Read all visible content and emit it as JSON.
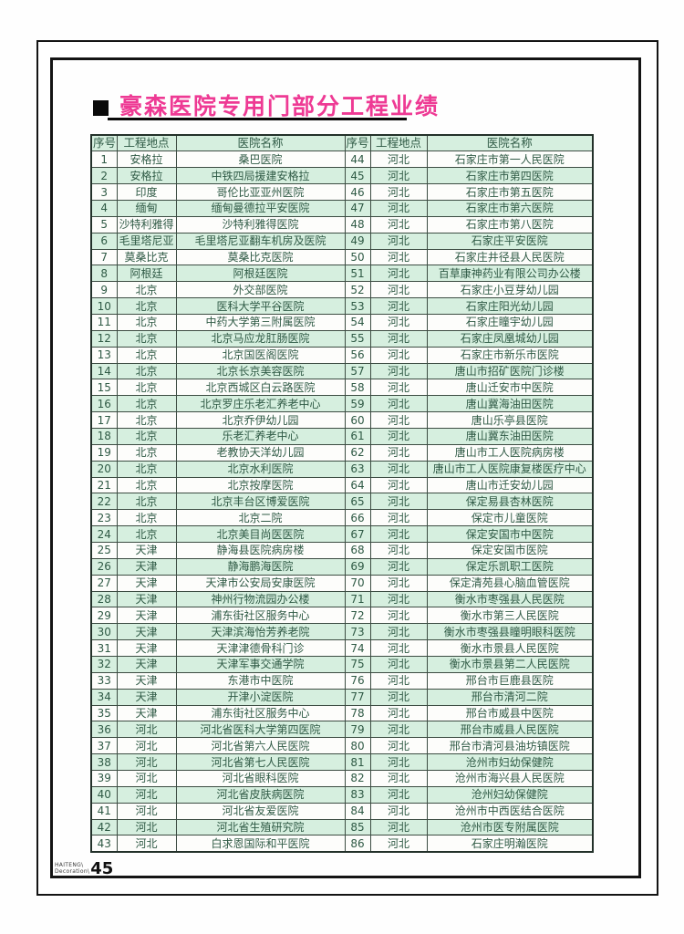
{
  "page": {
    "title": "豪森医院专用门部分工程业绩",
    "footer": {
      "brand_top": "HAITENG\\",
      "brand_bottom": "Decoration\\",
      "page_number": "45"
    }
  },
  "colors": {
    "title_pink": "#ee3a94",
    "row_green": "#d6efdf",
    "row_white": "#fdfdfb",
    "cell_text_green": "#2f5a45",
    "frame_black": "#141414"
  },
  "table": {
    "headers": [
      "序号",
      "工程地点",
      "医院名称"
    ],
    "rows": [
      [
        "1",
        "安格拉",
        "桑巴医院",
        "44",
        "河北",
        "石家庄市第一人民医院"
      ],
      [
        "2",
        "安格拉",
        "中铁四局援建安格拉",
        "45",
        "河北",
        "石家庄市第四医院"
      ],
      [
        "3",
        "印度",
        "哥伦比亚亚州医院",
        "46",
        "河北",
        "石家庄市第五医院"
      ],
      [
        "4",
        "缅甸",
        "缅甸曼德拉平安医院",
        "47",
        "河北",
        "石家庄市第六医院"
      ],
      [
        "5",
        "沙特利雅得",
        "沙特利雅得医院",
        "48",
        "河北",
        "石家庄市第八医院"
      ],
      [
        "6",
        "毛里塔尼亚",
        "毛里塔尼亚翻车机房及医院",
        "49",
        "河北",
        "石家庄平安医院"
      ],
      [
        "7",
        "莫桑比克",
        "莫桑比克医院",
        "50",
        "河北",
        "石家庄井径县人民医院"
      ],
      [
        "8",
        "阿根廷",
        "阿根廷医院",
        "51",
        "河北",
        "百草康神药业有限公司办公楼"
      ],
      [
        "9",
        "北京",
        "外交部医院",
        "52",
        "河北",
        "石家庄小豆芽幼儿园"
      ],
      [
        "10",
        "北京",
        "医科大学平谷医院",
        "53",
        "河北",
        "石家庄阳光幼儿园"
      ],
      [
        "11",
        "北京",
        "中药大学第三附属医院",
        "54",
        "河北",
        "石家庄瞳宇幼儿园"
      ],
      [
        "12",
        "北京",
        "北京马应龙肛肠医院",
        "55",
        "河北",
        "石家庄凤凰城幼儿园"
      ],
      [
        "13",
        "北京",
        "北京国医阁医院",
        "56",
        "河北",
        "石家庄市新乐市医院"
      ],
      [
        "14",
        "北京",
        "北京长京美容医院",
        "57",
        "河北",
        "唐山市招矿医院门诊楼"
      ],
      [
        "15",
        "北京",
        "北京西城区白云路医院",
        "58",
        "河北",
        "唐山迁安市中医院"
      ],
      [
        "16",
        "北京",
        "北京罗庄乐老汇养老中心",
        "59",
        "河北",
        "唐山冀海油田医院"
      ],
      [
        "17",
        "北京",
        "北京乔伊幼儿园",
        "60",
        "河北",
        "唐山乐亭县医院"
      ],
      [
        "18",
        "北京",
        "乐老汇养老中心",
        "61",
        "河北",
        "唐山冀东油田医院"
      ],
      [
        "19",
        "北京",
        "老教协天洋幼儿园",
        "62",
        "河北",
        "唐山市工人医院病房楼"
      ],
      [
        "20",
        "北京",
        "北京水利医院",
        "63",
        "河北",
        "唐山市工人医院康复楼医疗中心"
      ],
      [
        "21",
        "北京",
        "北京按摩医院",
        "64",
        "河北",
        "唐山市迁安幼儿园"
      ],
      [
        "22",
        "北京",
        "北京丰台区博爱医院",
        "65",
        "河北",
        "保定易县杏林医院"
      ],
      [
        "23",
        "北京",
        "北京二院",
        "66",
        "河北",
        "保定市儿童医院"
      ],
      [
        "24",
        "北京",
        "北京美目尚医医院",
        "67",
        "河北",
        "保定安国市中医院"
      ],
      [
        "25",
        "天津",
        "静海县医院病房楼",
        "68",
        "河北",
        "保定安国市医院"
      ],
      [
        "26",
        "天津",
        "静海鹏海医院",
        "69",
        "河北",
        "保定乐凯职工医院"
      ],
      [
        "27",
        "天津",
        "天津市公安局安康医院",
        "70",
        "河北",
        "保定清苑县心脑血管医院"
      ],
      [
        "28",
        "天津",
        "神州行物流园办公楼",
        "71",
        "河北",
        "衡水市枣强县人民医院"
      ],
      [
        "29",
        "天津",
        "浦东街社区服务中心",
        "72",
        "河北",
        "衡水市第三人民医院"
      ],
      [
        "30",
        "天津",
        "天津滨海怡芳养老院",
        "73",
        "河北",
        "衡水市枣强县瞳明眼科医院"
      ],
      [
        "31",
        "天津",
        "天津津德骨科门诊",
        "74",
        "河北",
        "衡水市景县人民医院"
      ],
      [
        "32",
        "天津",
        "天津军事交通学院",
        "75",
        "河北",
        "衡水市景县第二人民医院"
      ],
      [
        "33",
        "天津",
        "东港市中医院",
        "76",
        "河北",
        "邢台市巨鹿县医院"
      ],
      [
        "34",
        "天津",
        "开津小淀医院",
        "77",
        "河北",
        "邢台市清河二院"
      ],
      [
        "35",
        "天津",
        "浦东街社区服务中心",
        "78",
        "河北",
        "邢台市威县中医院"
      ],
      [
        "36",
        "河北",
        "河北省医科大学第四医院",
        "79",
        "河北",
        "邢台市威县人民医院"
      ],
      [
        "37",
        "河北",
        "河北省第六人民医院",
        "80",
        "河北",
        "邢台市清河县油坊镇医院"
      ],
      [
        "38",
        "河北",
        "河北省第七人民医院",
        "81",
        "河北",
        "沧州市妇幼保健院"
      ],
      [
        "39",
        "河北",
        "河北省眼科医院",
        "82",
        "河北",
        "沧州市海兴县人民医院"
      ],
      [
        "40",
        "河北",
        "河北省皮肤病医院",
        "83",
        "河北",
        "沧州妇幼保健院"
      ],
      [
        "41",
        "河北",
        "河北省友爱医院",
        "84",
        "河北",
        "沧州市中西医结合医院"
      ],
      [
        "42",
        "河北",
        "河北省生殖研究院",
        "85",
        "河北",
        "沧州市医专附属医院"
      ],
      [
        "43",
        "河北",
        "白求恩国际和平医院",
        "86",
        "河北",
        "石家庄明瀚医院"
      ]
    ]
  }
}
